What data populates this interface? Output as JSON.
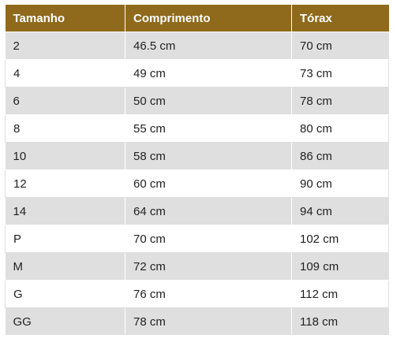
{
  "colors": {
    "header_bg": "#8f6a1c",
    "header_text": "#ffffff",
    "row_stripe": "#dfdfdf",
    "row_plain": "#ffffff",
    "cell_text": "#222222"
  },
  "table": {
    "headers": [
      "Tamanho",
      "Comprimento",
      "Tórax"
    ],
    "rows": [
      [
        "2",
        "46.5 cm",
        "70 cm"
      ],
      [
        "4",
        "49 cm",
        "73 cm"
      ],
      [
        "6",
        "50 cm",
        "78 cm"
      ],
      [
        "8",
        "55 cm",
        "80 cm"
      ],
      [
        "10",
        "58 cm",
        "86 cm"
      ],
      [
        "12",
        "60 cm",
        "90 cm"
      ],
      [
        "14",
        "64 cm",
        "94 cm"
      ],
      [
        "P",
        "70 cm",
        "102 cm"
      ],
      [
        "M",
        "72 cm",
        "109 cm"
      ],
      [
        "G",
        "76 cm",
        "112 cm"
      ],
      [
        "GG",
        "78 cm",
        "118 cm"
      ]
    ]
  }
}
